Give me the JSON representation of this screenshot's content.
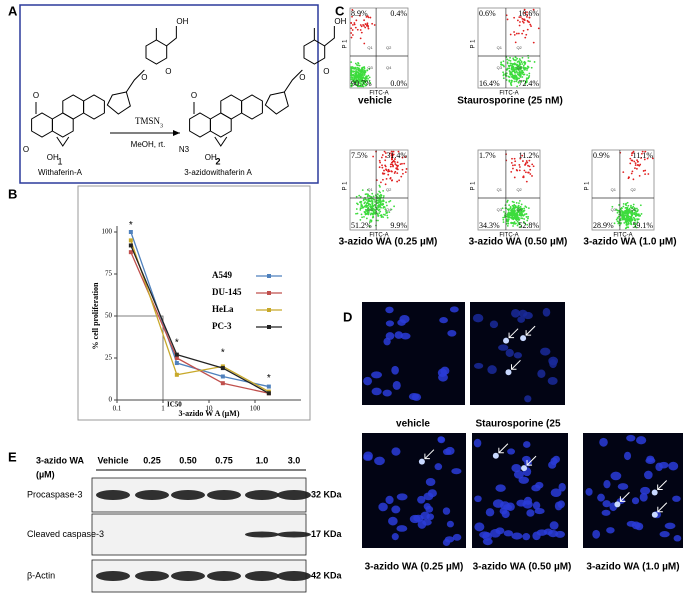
{
  "panels": {
    "A": {
      "label": "A",
      "compound1_number": "1",
      "compound1_name": "Withaferin-A",
      "compound2_number": "2",
      "compound2_name": "3-azidowithaferin A",
      "reagent": "TMSN",
      "reagent_sub": "3",
      "conditions": "MeOH, rt.",
      "atoms1": [
        "OH",
        "O",
        "O",
        "O",
        "O",
        "OH"
      ],
      "atoms2": [
        "OH",
        "O",
        "O",
        "O",
        "N3",
        "OH"
      ]
    },
    "C": {
      "label": "C",
      "y_axis": "P 1",
      "x_axis": "FITC-A",
      "quadrants": [
        "Q1",
        "Q2",
        "Q3",
        "Q4"
      ],
      "plots": [
        {
          "caption": "vehicle",
          "ul": "8.9%",
          "ur": "0.4%",
          "ll": "90.7%",
          "lr": "0.0%"
        },
        {
          "caption": "Staurosporine (25 nM)",
          "ul": "0.6%",
          "ur": "10.6%",
          "ll": "16.4%",
          "lr": "72.4%"
        },
        {
          "caption": "3-azido WA (0.25 µM)",
          "ul": "7.5%",
          "ur": "31.4%",
          "ll": "51.2%",
          "lr": "9.9%"
        },
        {
          "caption": "3-azido WA (0.50 µM)",
          "ul": "1.7%",
          "ur": "11.2%",
          "ll": "34.3%",
          "lr": "52.8%"
        },
        {
          "caption": "3-azido WA (1.0 µM)",
          "ul": "0.9%",
          "ur": "11.1%",
          "ll": "28.9%",
          "lr": "59.1%"
        }
      ]
    },
    "D": {
      "label": "D",
      "captions": [
        "vehicle",
        "Staurosporine (25",
        "3-azido WA (0.25 µM)",
        "3-azido WA (0.50 µM)",
        "3-azido WA (1.0 µM)"
      ]
    },
    "E": {
      "label": "E",
      "treatment": "3-azido WA",
      "unit": "(µM)",
      "lanes": [
        "Vehicle",
        "0.25",
        "0.50",
        "0.75",
        "1.0",
        "3.0"
      ],
      "blots": [
        {
          "name": "Procaspase-3",
          "size": "32 KDa"
        },
        {
          "name": "Cleaved caspase-3",
          "size": "17 KDa"
        },
        {
          "name": "β-Actin",
          "size": "42 KDa"
        }
      ]
    }
  },
  "chart_data": {
    "type": "line",
    "panel_label": "B",
    "x_label": "3-azido W A (µM)",
    "y_label": "% cell proliferation",
    "x": [
      0.2,
      2,
      20,
      200
    ],
    "log_x": true,
    "xlim": [
      0.1,
      1000
    ],
    "xticks": [
      0.1,
      1,
      10,
      100
    ],
    "ylim": [
      0,
      100
    ],
    "yticks": [
      0,
      25,
      50,
      75,
      100
    ],
    "series": [
      {
        "name": "A549",
        "color": "#4f81bd",
        "values": [
          100,
          22,
          14,
          8
        ]
      },
      {
        "name": "DU-145",
        "color": "#c0504d",
        "values": [
          88,
          25,
          10,
          4
        ]
      },
      {
        "name": "HeLa",
        "color": "#c8a92a",
        "values": [
          95,
          15,
          20,
          5
        ]
      },
      {
        "name": "PC-3",
        "color": "#222222",
        "values": [
          92,
          27,
          19,
          4
        ]
      }
    ],
    "annotations": [
      {
        "text": "IC50",
        "x": 1,
        "y": 50
      }
    ],
    "markers": [
      {
        "text": "*",
        "x": 0.2,
        "y": 104
      },
      {
        "text": "*",
        "x": 2,
        "y": 34
      },
      {
        "text": "*",
        "x": 20,
        "y": 28
      },
      {
        "text": "*",
        "x": 200,
        "y": 13
      }
    ]
  }
}
